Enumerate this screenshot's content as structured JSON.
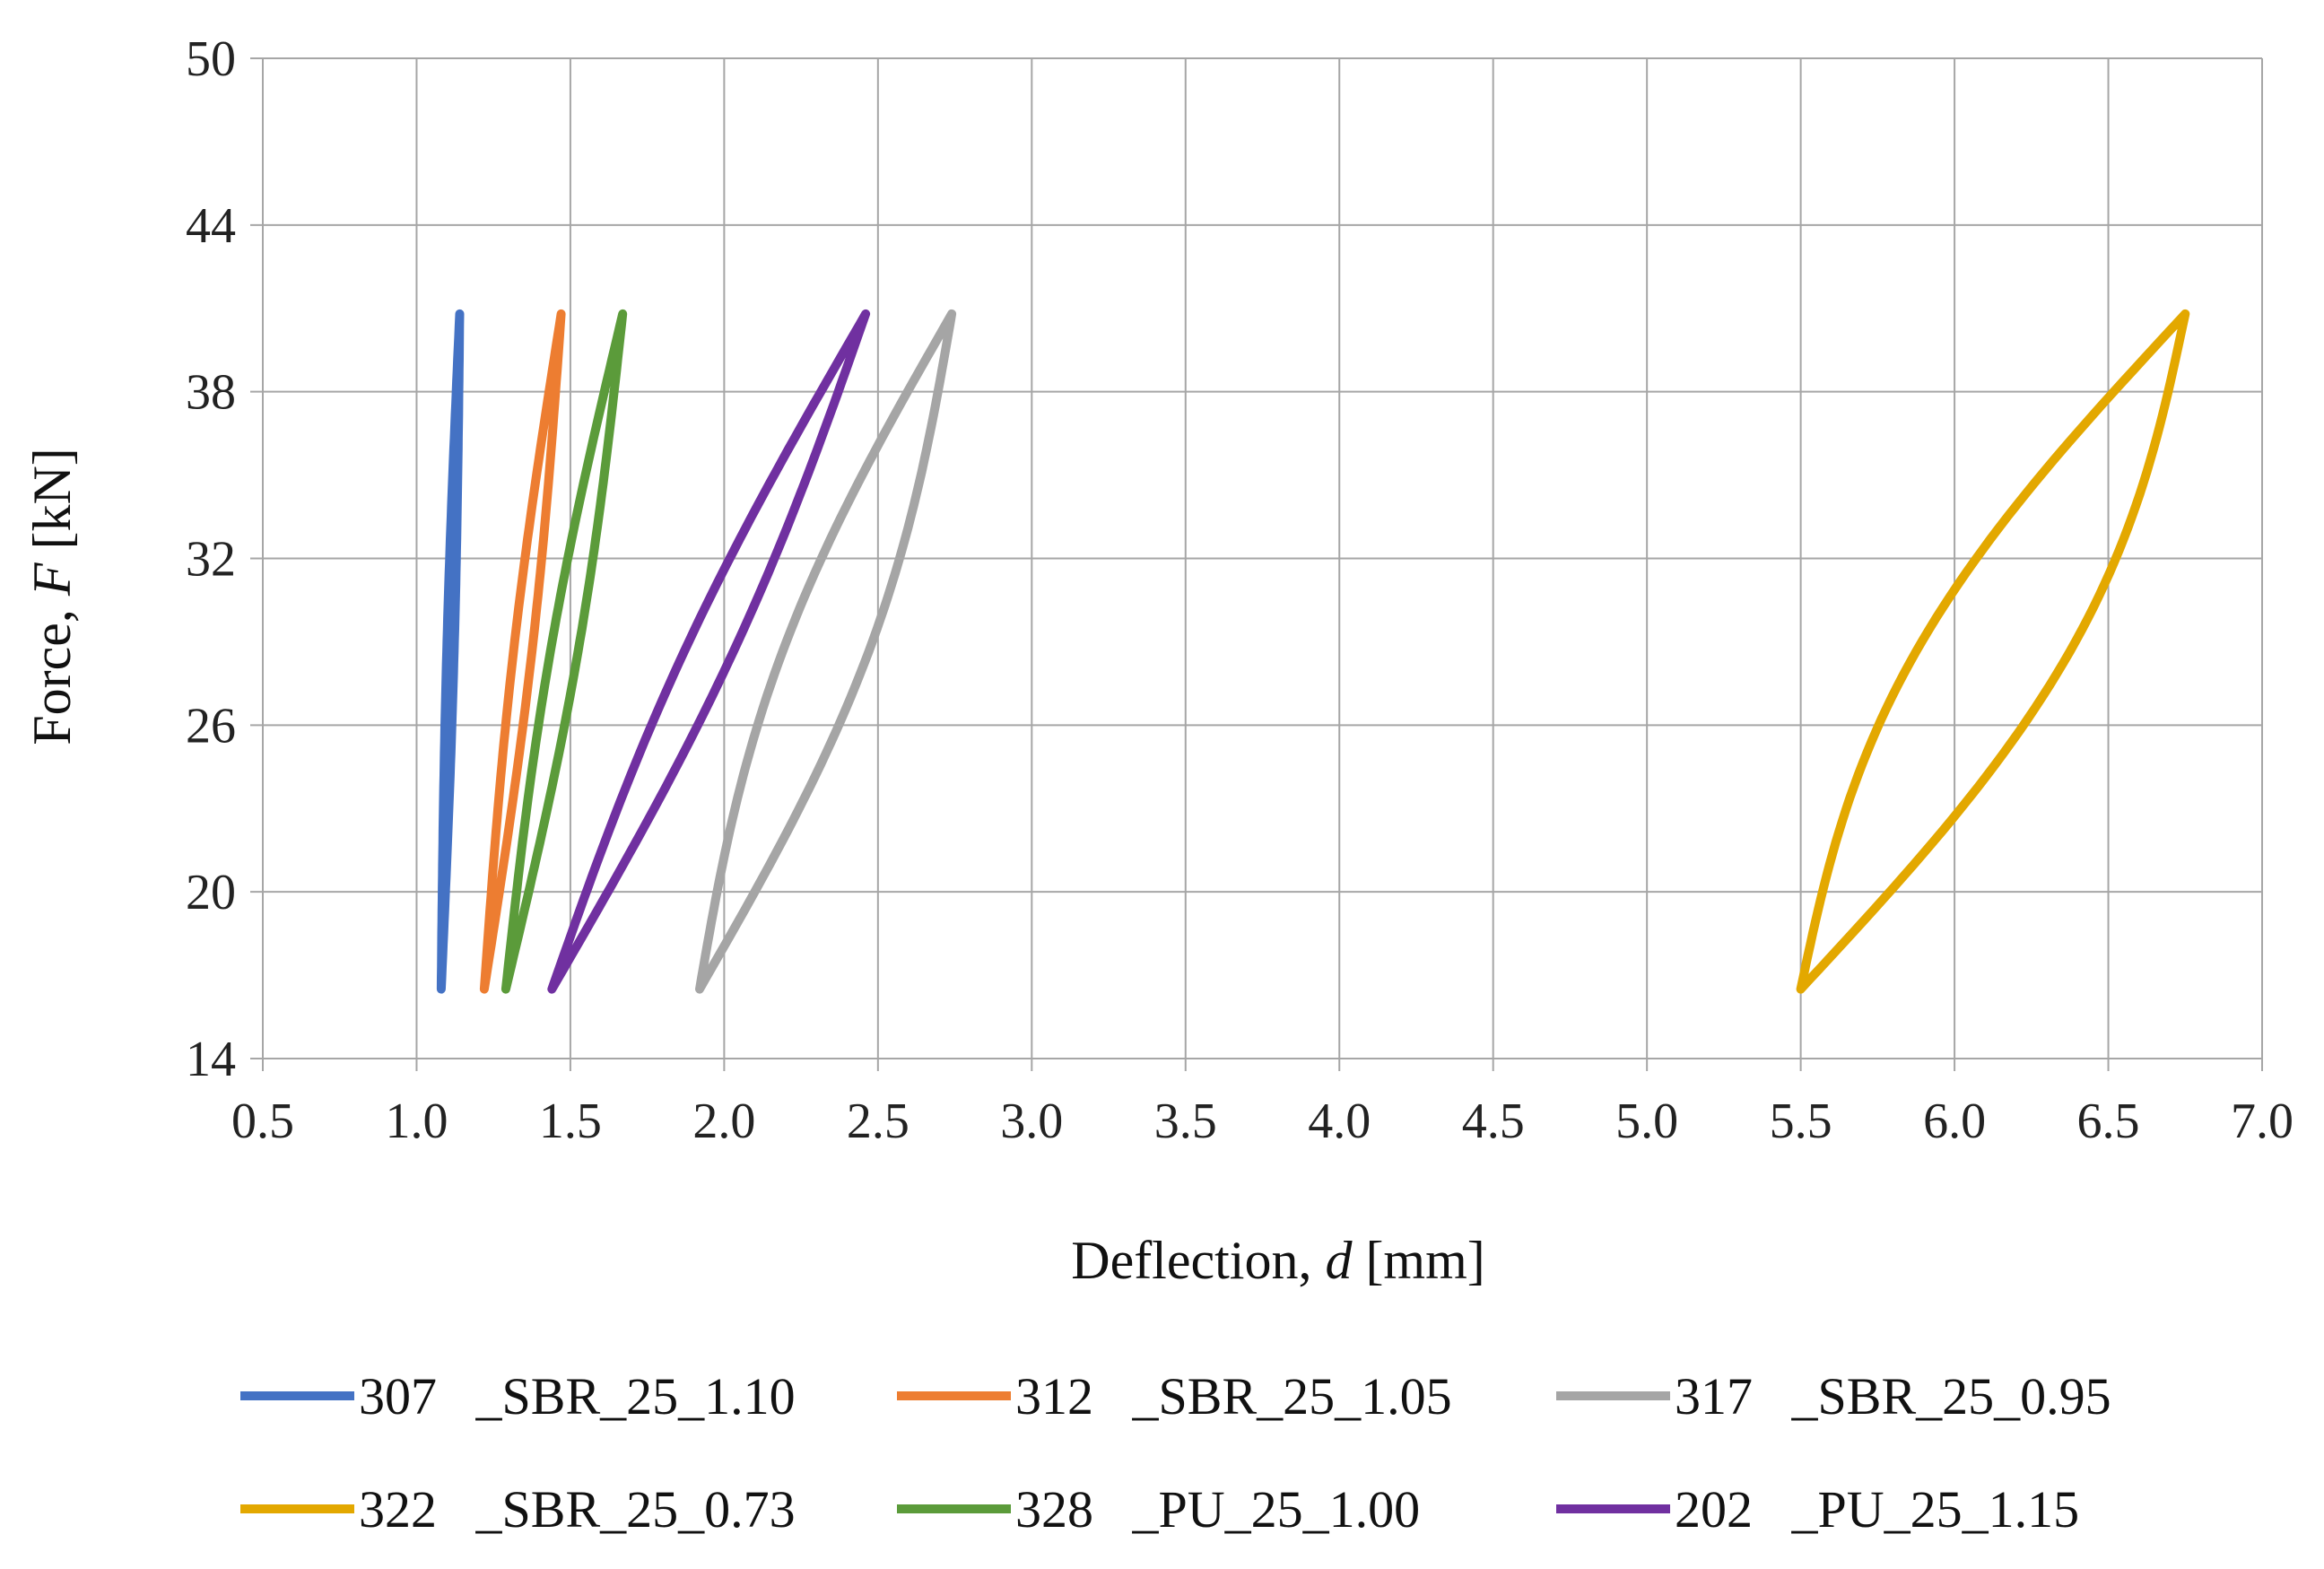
{
  "chart_data": {
    "type": "line",
    "title": "",
    "xlabel": "Deflection, d [mm]",
    "xlabel_parts": {
      "pre": "Deflection, ",
      "var": "d",
      "post": " [mm]"
    },
    "ylabel": "Force, F [kN]",
    "ylabel_parts": {
      "pre": "Force, ",
      "var": "F",
      "post": " [kN]"
    },
    "xlim": [
      0.5,
      7.0
    ],
    "ylim": [
      14,
      50
    ],
    "xticks": [
      "0.5",
      "1.0",
      "1.5",
      "2.0",
      "2.5",
      "3.0",
      "3.5",
      "4.0",
      "4.5",
      "5.0",
      "5.5",
      "6.0",
      "6.5",
      "7.0"
    ],
    "yticks": [
      "14",
      "20",
      "26",
      "32",
      "38",
      "44",
      "50"
    ],
    "grid": true,
    "legend_position": "bottom",
    "series": [
      {
        "name": "307   _SBR_25_1.10",
        "color": "#4472c4",
        "x_min": 1.08,
        "x_max": 1.14,
        "y_min": 16.5,
        "y_max": 40.8,
        "bulge": 0.012
      },
      {
        "name": "312   _SBR_25_1.05",
        "color": "#ed7d31",
        "x_min": 1.22,
        "x_max": 1.47,
        "y_min": 16.5,
        "y_max": 40.8,
        "bulge": 0.03
      },
      {
        "name": "317   _SBR_25_0.95",
        "color": "#a5a5a5",
        "x_min": 1.92,
        "x_max": 2.74,
        "y_min": 16.5,
        "y_max": 40.8,
        "bulge": 0.14
      },
      {
        "name": "322   _SBR_25_0.73",
        "color": "#e3a800",
        "x_min": 5.5,
        "x_max": 6.75,
        "y_min": 16.5,
        "y_max": 40.8,
        "bulge": 0.25
      },
      {
        "name": "328   _PU_25_1.00",
        "color": "#5b9b3a",
        "x_min": 1.29,
        "x_max": 1.67,
        "y_min": 16.5,
        "y_max": 40.8,
        "bulge": 0.045
      },
      {
        "name": "202   _PU_25_1.15",
        "color": "#7030a0",
        "x_min": 1.44,
        "x_max": 2.46,
        "y_min": 16.5,
        "y_max": 40.8,
        "bulge": 0.08
      }
    ]
  }
}
